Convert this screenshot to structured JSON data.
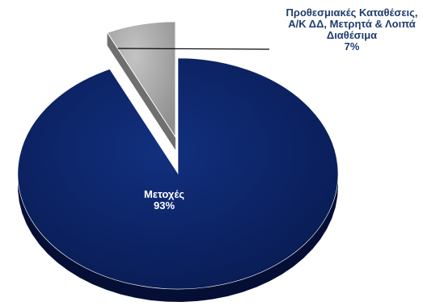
{
  "chart_data": {
    "type": "pie",
    "title": "",
    "slices": [
      {
        "label_lines": [
          "Μετοχές"
        ],
        "percent_label": "93%",
        "value": 93,
        "color": "#0a2060",
        "side_color": "#050f35",
        "label_color": "#ffffff"
      },
      {
        "label_lines": [
          "Προθεσμιακές Καταθέσεις,",
          "Α/Κ ΔΔ, Μετρητά & Λοιπά",
          "Διαθέσιμα"
        ],
        "percent_label": "7%",
        "value": 7,
        "color": "#a6a6a6",
        "side_color": "#6f6f6f",
        "label_color": "#1f3d6e",
        "exploded": true
      }
    ],
    "legend": "none"
  }
}
